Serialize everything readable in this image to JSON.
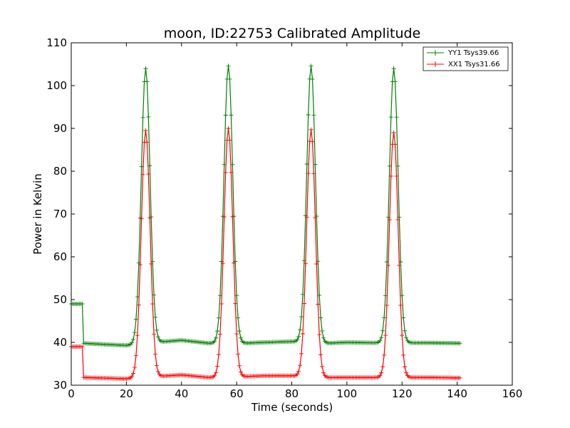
{
  "chart_data": {
    "type": "line",
    "title": "moon, ID:22753 Calibrated Amplitude",
    "xlabel": "Time (seconds)",
    "ylabel": "Power in Kelvin",
    "xlim": [
      0,
      160
    ],
    "ylim": [
      30,
      110
    ],
    "xticks": [
      0,
      20,
      40,
      60,
      80,
      100,
      120,
      140,
      160
    ],
    "yticks": [
      30,
      40,
      50,
      60,
      70,
      80,
      90,
      100,
      110
    ],
    "grid": false,
    "legend_position": "top-right",
    "marker": "+",
    "x_start": 0,
    "x_step": 0.5,
    "series": [
      {
        "name": "YY1 Tsys39.66",
        "color": "#008000",
        "pre_level": 49,
        "pre_end": 4.5,
        "baseline": [
          [
            4.5,
            39.8
          ],
          [
            10,
            39.6
          ],
          [
            20,
            39.3
          ],
          [
            30,
            40.0
          ],
          [
            40,
            40.5
          ],
          [
            50,
            39.8
          ],
          [
            62,
            39.8
          ],
          [
            70,
            40.0
          ],
          [
            80,
            40.2
          ],
          [
            92,
            39.8
          ],
          [
            100,
            40.0
          ],
          [
            110,
            39.9
          ],
          [
            122,
            39.9
          ],
          [
            130,
            39.9
          ],
          [
            141,
            39.8
          ]
        ],
        "peaks": [
          {
            "center": 27,
            "height": 104
          },
          {
            "center": 57,
            "height": 104.6
          },
          {
            "center": 87,
            "height": 104.6
          },
          {
            "center": 117,
            "height": 104
          }
        ],
        "peak_width": 1.6
      },
      {
        "name": "XX1 Tsys31.66",
        "color": "#ff0000",
        "pre_level": 39,
        "pre_end": 4.5,
        "baseline": [
          [
            4.5,
            31.8
          ],
          [
            10,
            31.7
          ],
          [
            20,
            31.5
          ],
          [
            30,
            32.0
          ],
          [
            40,
            32.4
          ],
          [
            50,
            31.8
          ],
          [
            62,
            32.0
          ],
          [
            70,
            32.2
          ],
          [
            80,
            32.2
          ],
          [
            92,
            31.8
          ],
          [
            100,
            31.8
          ],
          [
            110,
            31.8
          ],
          [
            122,
            31.8
          ],
          [
            130,
            31.8
          ],
          [
            141,
            31.7
          ]
        ],
        "peaks": [
          {
            "center": 27,
            "height": 89.5
          },
          {
            "center": 57,
            "height": 90
          },
          {
            "center": 87,
            "height": 89.7
          },
          {
            "center": 117,
            "height": 89
          }
        ],
        "peak_width": 1.6
      }
    ]
  }
}
